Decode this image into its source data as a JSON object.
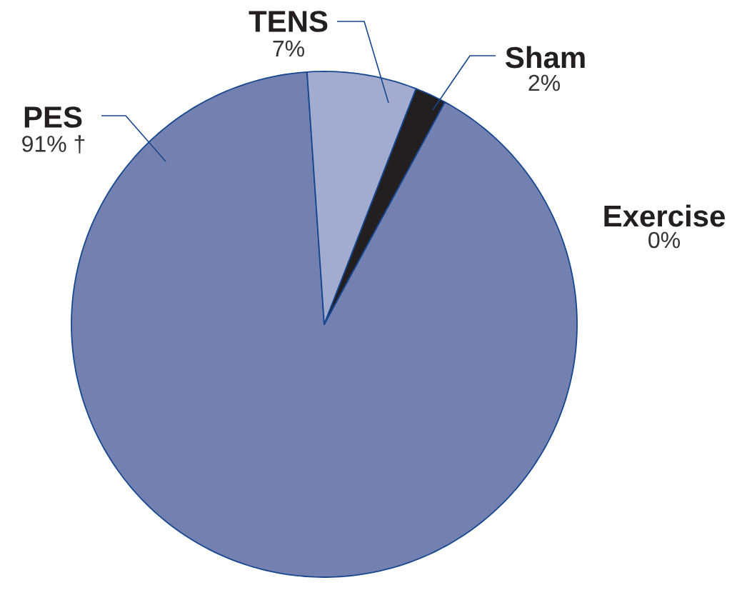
{
  "chart_data": {
    "type": "pie",
    "categories": [
      "PES",
      "TENS",
      "Sham",
      "Exercise"
    ],
    "values": [
      91,
      7,
      2,
      0
    ],
    "colors": [
      "#7480b0",
      "#a3abcf",
      "#231f20",
      null
    ],
    "value_labels": [
      "91% †",
      "7%",
      "2%",
      "0%"
    ]
  }
}
